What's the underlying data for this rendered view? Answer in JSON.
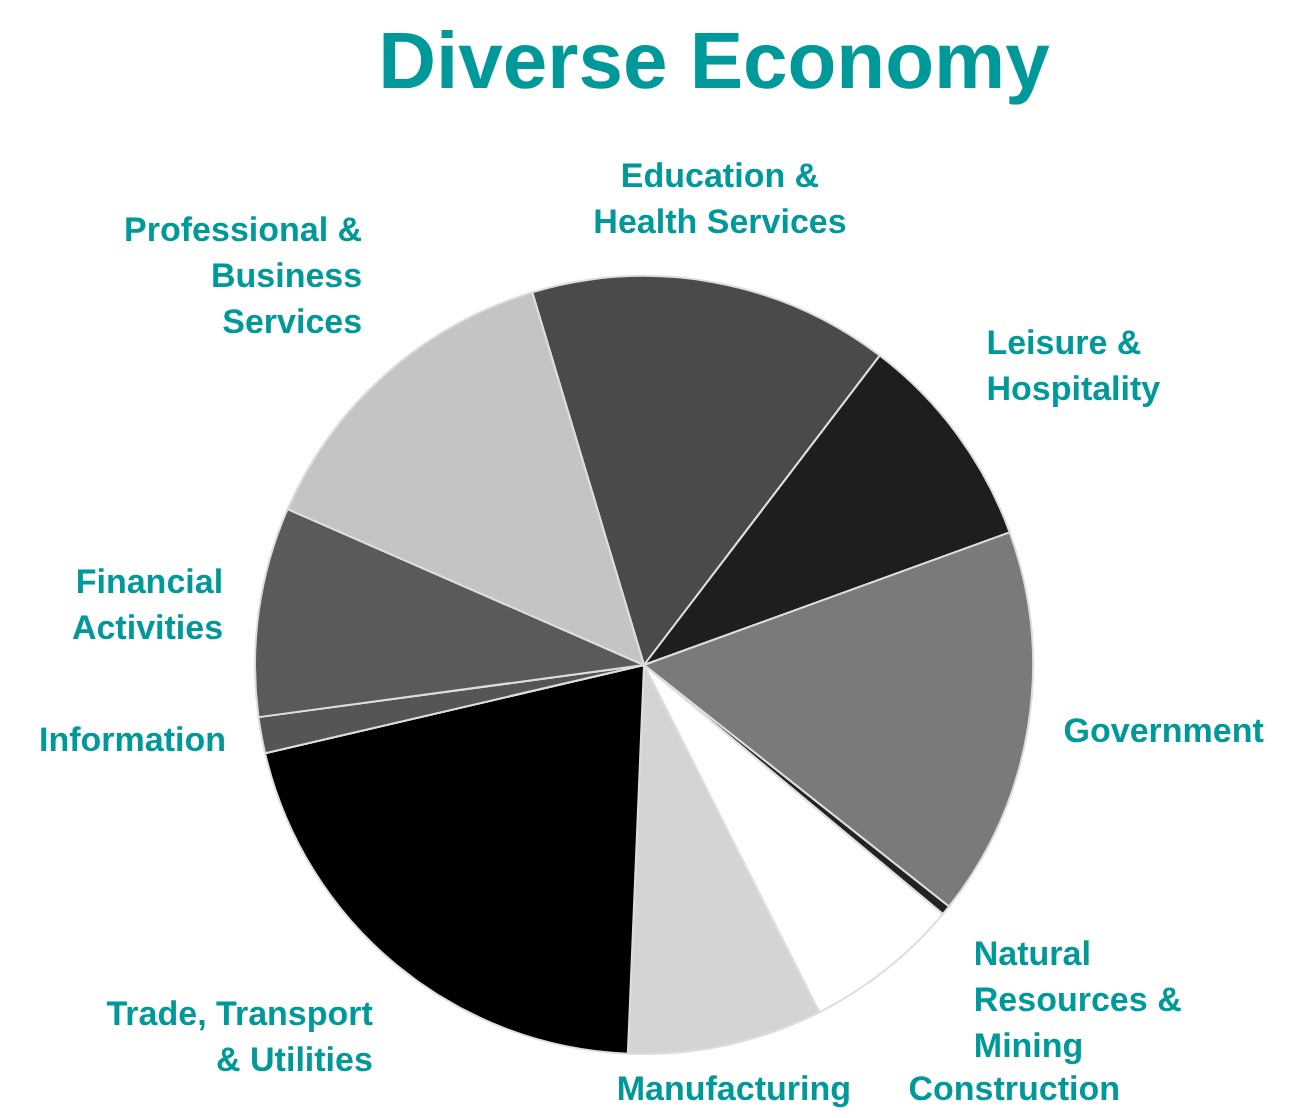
{
  "chart_data": {
    "type": "pie",
    "title": "Diverse Economy",
    "categories": [
      "Education & Health Services",
      "Leisure & Hospitality",
      "Government",
      "Natural Resources & Mining",
      "Construction",
      "Manufacturing",
      "Trade, Transport & Utilities",
      "Information",
      "Financial Activities",
      "Professional & Business Services"
    ],
    "values": [
      15.0,
      9.1,
      16.2,
      0.4,
      6.5,
      8.1,
      20.7,
      1.5,
      8.7,
      13.8
    ],
    "colors": [
      "#4a4a4a",
      "#1e1e1e",
      "#7a7a7a",
      "#222222",
      "#ffffff",
      "#d4d4d4",
      "#000000",
      "#555555",
      "#5a5a5a",
      "#c4c4c4"
    ],
    "legend": false
  }
}
